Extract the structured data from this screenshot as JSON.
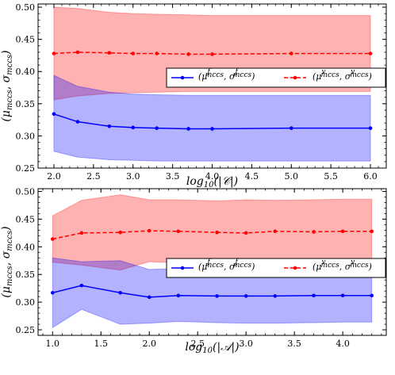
{
  "chart_data": [
    {
      "type": "line",
      "xlabel": "log10(|C|)",
      "ylabel": "(μmccs, σmccs)",
      "xlim": [
        1.8,
        6.2
      ],
      "ylim": [
        0.25,
        0.505
      ],
      "xticks": [
        2.0,
        2.5,
        3.0,
        3.5,
        4.0,
        4.5,
        5.0,
        5.5,
        6.0
      ],
      "xtick_labels": [
        "2.0",
        "2.5",
        "3.0",
        "3.5",
        "4.0",
        "4.5",
        "5.0",
        "5.5",
        "6.0"
      ],
      "yticks": [
        0.25,
        0.3,
        0.35,
        0.4,
        0.45,
        0.5
      ],
      "ytick_labels": [
        "0.25",
        "0.30",
        "0.35",
        "0.40",
        "0.45",
        "0.50"
      ],
      "x": [
        2.0,
        2.3,
        2.7,
        3.0,
        3.3,
        3.7,
        4.0,
        5.0,
        6.0
      ],
      "legend_position": "center-right",
      "series": [
        {
          "name": "(μmccs^f, σmccs^f)",
          "color": "#0000ff",
          "style": "solid",
          "values": [
            0.334,
            0.322,
            0.315,
            0.313,
            0.312,
            0.311,
            0.311,
            0.312,
            0.312
          ],
          "band_upper": [
            0.394,
            0.377,
            0.368,
            0.365,
            0.364,
            0.363,
            0.363,
            0.363,
            0.363
          ],
          "band_lower": [
            0.276,
            0.267,
            0.263,
            0.262,
            0.261,
            0.261,
            0.261,
            0.261,
            0.261
          ]
        },
        {
          "name": "(μmccs^v, σmccs^v)",
          "color": "#ff0000",
          "style": "dashed",
          "values": [
            0.428,
            0.43,
            0.429,
            0.428,
            0.428,
            0.427,
            0.427,
            0.428,
            0.428
          ],
          "band_upper": [
            0.5,
            0.498,
            0.492,
            0.49,
            0.489,
            0.488,
            0.487,
            0.487,
            0.487
          ],
          "band_lower": [
            0.356,
            0.362,
            0.366,
            0.367,
            0.368,
            0.369,
            0.369,
            0.369,
            0.369
          ]
        }
      ]
    },
    {
      "type": "line",
      "xlabel": "log10(|A|)",
      "ylabel": "(μmccs, σmccs)",
      "xlim": [
        0.85,
        4.45
      ],
      "ylim": [
        0.24,
        0.505
      ],
      "xticks": [
        1.0,
        1.5,
        2.0,
        2.5,
        3.0,
        3.5,
        4.0
      ],
      "xtick_labels": [
        "1.0",
        "1.5",
        "2.0",
        "2.5",
        "3.0",
        "3.5",
        "4.0"
      ],
      "yticks": [
        0.25,
        0.3,
        0.35,
        0.4,
        0.45,
        0.5
      ],
      "ytick_labels": [
        "0.25",
        "0.30",
        "0.35",
        "0.40",
        "0.45",
        "0.50"
      ],
      "x": [
        1.0,
        1.3,
        1.7,
        2.0,
        2.3,
        2.7,
        3.0,
        3.3,
        3.7,
        4.0,
        4.3
      ],
      "legend_position": "center-right",
      "series": [
        {
          "name": "(μmccs^f, σmccs^f)",
          "color": "#0000ff",
          "style": "solid",
          "values": [
            0.317,
            0.33,
            0.317,
            0.309,
            0.312,
            0.311,
            0.311,
            0.311,
            0.312,
            0.312,
            0.312
          ],
          "band_upper": [
            0.38,
            0.373,
            0.375,
            0.359,
            0.361,
            0.36,
            0.36,
            0.36,
            0.361,
            0.361,
            0.361
          ],
          "band_lower": [
            0.254,
            0.287,
            0.26,
            0.262,
            0.265,
            0.263,
            0.262,
            0.262,
            0.263,
            0.264,
            0.264
          ]
        },
        {
          "name": "(μmccs^v, σmccs^v)",
          "color": "#ff0000",
          "style": "dashed",
          "values": [
            0.414,
            0.425,
            0.426,
            0.429,
            0.428,
            0.426,
            0.425,
            0.428,
            0.427,
            0.428,
            0.428
          ],
          "band_upper": [
            0.456,
            0.484,
            0.494,
            0.485,
            0.485,
            0.483,
            0.485,
            0.484,
            0.485,
            0.486,
            0.486
          ],
          "band_lower": [
            0.372,
            0.367,
            0.358,
            0.373,
            0.371,
            0.369,
            0.366,
            0.372,
            0.369,
            0.37,
            0.37
          ]
        }
      ]
    }
  ]
}
